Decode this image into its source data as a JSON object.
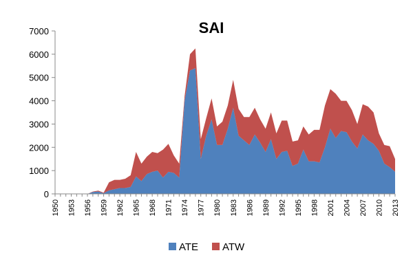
{
  "chart_data": {
    "type": "area",
    "stacked": true,
    "title": "SAI",
    "xlabel": "",
    "ylabel": "",
    "xlim": [
      1950,
      2013
    ],
    "ylim": [
      0,
      7000
    ],
    "yticks": [
      0,
      1000,
      2000,
      3000,
      4000,
      5000,
      6000,
      7000
    ],
    "xtick_labels": [
      "1950",
      "1953",
      "1956",
      "1959",
      "1962",
      "1965",
      "1968",
      "1971",
      "1974",
      "1977",
      "1980",
      "1983",
      "1986",
      "1989",
      "1992",
      "1995",
      "1998",
      "2001",
      "2004",
      "2007",
      "2010",
      "2013"
    ],
    "grid": false,
    "legend": "bottom",
    "x": [
      1950,
      1951,
      1952,
      1953,
      1954,
      1955,
      1956,
      1957,
      1958,
      1959,
      1960,
      1961,
      1962,
      1963,
      1964,
      1965,
      1966,
      1967,
      1968,
      1969,
      1970,
      1971,
      1972,
      1973,
      1974,
      1975,
      1976,
      1977,
      1978,
      1979,
      1980,
      1981,
      1982,
      1983,
      1984,
      1985,
      1986,
      1987,
      1988,
      1989,
      1990,
      1991,
      1992,
      1993,
      1994,
      1995,
      1996,
      1997,
      1998,
      1999,
      2000,
      2001,
      2002,
      2003,
      2004,
      2005,
      2006,
      2007,
      2008,
      2009,
      2010,
      2011,
      2012,
      2013
    ],
    "series": [
      {
        "name": "ATE",
        "color": "#4f81bd",
        "values": [
          0,
          0,
          0,
          0,
          0,
          0,
          0,
          80,
          100,
          30,
          150,
          200,
          250,
          250,
          300,
          750,
          550,
          850,
          950,
          1000,
          700,
          950,
          900,
          700,
          4000,
          5300,
          5400,
          1500,
          2500,
          3200,
          2100,
          2100,
          2800,
          3700,
          2500,
          2300,
          2100,
          2550,
          2200,
          1800,
          2350,
          1500,
          1800,
          1850,
          1200,
          1300,
          1900,
          1400,
          1400,
          1350,
          2000,
          2800,
          2400,
          2700,
          2650,
          2250,
          1950,
          2550,
          2300,
          2150,
          1850,
          1300,
          1150,
          950
        ]
      },
      {
        "name": "ATW",
        "color": "#c0504d",
        "values": [
          0,
          0,
          0,
          0,
          0,
          0,
          0,
          20,
          40,
          20,
          350,
          400,
          350,
          400,
          500,
          1050,
          750,
          750,
          850,
          750,
          1200,
          1200,
          750,
          600,
          200,
          700,
          850,
          850,
          750,
          900,
          800,
          1000,
          1000,
          1200,
          1150,
          1000,
          1200,
          1150,
          1000,
          1000,
          1150,
          1100,
          1350,
          1300,
          1050,
          1000,
          1000,
          1150,
          1350,
          1400,
          1800,
          1700,
          1900,
          1300,
          1350,
          1350,
          1050,
          1300,
          1450,
          1350,
          750,
          800,
          900,
          550
        ]
      }
    ]
  }
}
